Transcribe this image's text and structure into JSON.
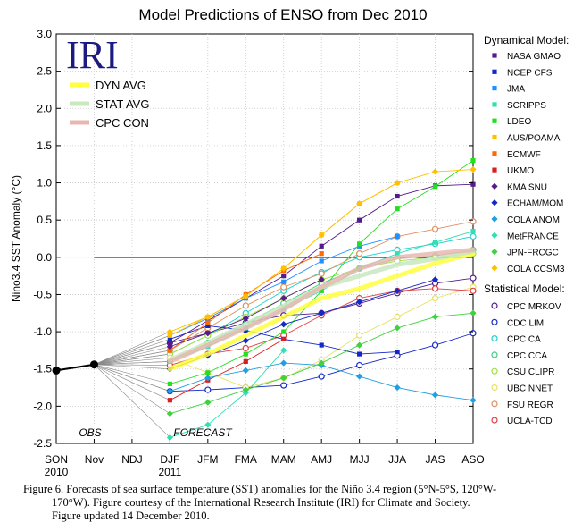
{
  "chart_data": {
    "type": "line",
    "title": "Model Predictions of ENSO from Dec 2010",
    "ylabel": "Nino3.4 SST Anomaly (°C)",
    "xlabel": "",
    "ylim": [
      -2.5,
      3.0
    ],
    "yticks": [
      "3.0",
      "2.5",
      "2.0",
      "1.5",
      "1.0",
      "0.5",
      "0.0",
      "-0.5",
      "-1.0",
      "-1.5",
      "-2.0",
      "-2.5"
    ],
    "categories": [
      "SON",
      "Nov",
      "NDJ",
      "DJF",
      "JFM",
      "FMA",
      "MAM",
      "AMJ",
      "MJJ",
      "JJA",
      "JAS",
      "ASO"
    ],
    "category_sublabels": {
      "SON": "2010",
      "DJF": "2011"
    },
    "logo": "IRI",
    "annotations": {
      "obs": "OBS",
      "forecast": "FORECAST"
    },
    "observed": {
      "name": "OBS",
      "x": [
        "SON",
        "Nov"
      ],
      "values": [
        -1.52,
        -1.44
      ],
      "color": "#000000"
    },
    "averages": [
      {
        "name": "DYN AVG",
        "color": "#ffff40",
        "values": [
          -1.5,
          -1.3,
          -1.05,
          -0.8,
          -0.55,
          -0.42,
          -0.25,
          -0.08,
          0.05
        ]
      },
      {
        "name": "STAT AVG",
        "color": "#c8e8c0",
        "values": [
          -1.38,
          -1.15,
          -0.9,
          -0.65,
          -0.4,
          -0.25,
          -0.1,
          -0.02,
          0.08
        ]
      },
      {
        "name": "CPC CON",
        "color": "#e8b8b0",
        "values": [
          -1.4,
          -1.18,
          -0.95,
          -0.7,
          -0.4,
          -0.15,
          0.0,
          0.05,
          0.1
        ]
      }
    ],
    "legend_dynamical_title": "Dynamical Model:",
    "legend_statistical_title": "Statistical Model:",
    "dynamical_models": [
      {
        "name": "NASA GMAO",
        "color": "#551a8b",
        "marker": "square",
        "values": [
          -1.15,
          -0.85,
          -0.55,
          -0.25,
          0.15,
          0.5,
          0.82,
          0.96,
          0.98
        ]
      },
      {
        "name": "NCEP CFS",
        "color": "#1428c8",
        "marker": "square",
        "values": [
          -1.1,
          -0.92,
          -0.98,
          -1.1,
          -1.18,
          -1.3,
          -1.27,
          null,
          null
        ]
      },
      {
        "name": "JMA",
        "color": "#1e90ff",
        "marker": "square",
        "values": [
          -1.05,
          -0.82,
          -0.55,
          -0.33,
          -0.05,
          0.15,
          0.28,
          null,
          null
        ]
      },
      {
        "name": "SCRIPPS",
        "color": "#30e0b0",
        "marker": "square",
        "values": [
          -1.4,
          -1.2,
          -0.95,
          -0.7,
          -0.45,
          -0.15,
          0.05,
          0.2,
          0.35
        ]
      },
      {
        "name": "LDEO",
        "color": "#20e020",
        "marker": "square",
        "values": [
          -1.7,
          -1.55,
          -1.3,
          -1.0,
          -0.45,
          0.18,
          0.65,
          0.95,
          1.3
        ]
      },
      {
        "name": "AUS/POAMA",
        "color": "#ffc000",
        "marker": "square",
        "values": [
          -1.05,
          -0.8,
          -0.52,
          -0.15,
          0.3,
          0.72,
          1.0,
          null,
          null
        ]
      },
      {
        "name": "ECMWF",
        "color": "#ff6a00",
        "marker": "square",
        "values": [
          -1.25,
          -0.88,
          -0.5,
          -0.18,
          0.05,
          null,
          null,
          null,
          null
        ]
      },
      {
        "name": "UKMO",
        "color": "#d81e1e",
        "marker": "square",
        "values": [
          -1.92,
          -1.65,
          -1.4,
          -1.1,
          null,
          null,
          null,
          null,
          null
        ]
      },
      {
        "name": "KMA SNU",
        "color": "#551a8b",
        "marker": "diamond",
        "values": [
          -1.2,
          -1.02,
          -0.82,
          -0.55,
          -0.3,
          null,
          null,
          null,
          null
        ]
      },
      {
        "name": "ECHAM/MOM",
        "color": "#1428c8",
        "marker": "diamond",
        "values": [
          -1.5,
          -1.32,
          -1.12,
          -0.9,
          -0.75,
          -0.6,
          -0.45,
          -0.3,
          null
        ]
      },
      {
        "name": "COLA ANOM",
        "color": "#20a0e0",
        "marker": "diamond",
        "values": [
          -1.8,
          -1.62,
          -1.52,
          -1.42,
          -1.45,
          -1.6,
          -1.75,
          -1.85,
          -1.92
        ]
      },
      {
        "name": "MetFRANCE",
        "color": "#30e0b0",
        "marker": "diamond",
        "values": [
          -2.42,
          -2.25,
          -1.82,
          -1.25,
          null,
          null,
          null,
          null,
          null
        ]
      },
      {
        "name": "JPN-FRCGC",
        "color": "#40d040",
        "marker": "diamond",
        "values": [
          -2.1,
          -1.95,
          -1.78,
          -1.62,
          -1.42,
          -1.18,
          -0.95,
          -0.8,
          -0.75
        ]
      },
      {
        "name": "COLA CCSM3",
        "color": "#ffc000",
        "marker": "diamond",
        "values": [
          -1.0,
          -0.8,
          -0.52,
          -0.15,
          0.3,
          0.72,
          1.0,
          1.15,
          1.18
        ]
      }
    ],
    "statistical_models": [
      {
        "name": "CPC MRKOV",
        "color": "#551a8b",
        "marker": "circle",
        "values": [
          -1.15,
          -1.02,
          -0.88,
          -0.78,
          -0.75,
          -0.62,
          -0.48,
          -0.35,
          -0.28
        ]
      },
      {
        "name": "CDC LIM",
        "color": "#1428c8",
        "marker": "circle",
        "values": [
          -1.8,
          -1.78,
          -1.75,
          -1.72,
          -1.6,
          -1.45,
          -1.32,
          -1.18,
          -1.02
        ]
      },
      {
        "name": "CPC CA",
        "color": "#20d0d0",
        "marker": "circle",
        "values": [
          -1.3,
          -1.05,
          -0.75,
          -0.45,
          -0.2,
          0.0,
          0.1,
          0.18,
          0.28
        ]
      },
      {
        "name": "CPC CCA",
        "color": "#40d080",
        "marker": "circle",
        "values": [
          -1.4,
          -1.15,
          -0.9,
          -0.62,
          -0.35,
          -0.15,
          -0.02,
          0.02,
          0.1
        ]
      },
      {
        "name": "CSU CLIPR",
        "color": "#a0e040",
        "marker": "circle",
        "values": [
          -1.3,
          -1.05,
          -0.8,
          -0.55,
          -0.3,
          -0.15,
          -0.05,
          0.0,
          0.05
        ]
      },
      {
        "name": "UBC NNET",
        "color": "#e8e060",
        "marker": "circle",
        "values": [
          -1.35,
          -1.55,
          -1.75,
          -1.62,
          -1.38,
          -1.05,
          -0.8,
          -0.55,
          -0.4
        ]
      },
      {
        "name": "FSU REGR",
        "color": "#e09060",
        "marker": "circle",
        "values": [
          -1.25,
          -0.95,
          -0.65,
          -0.4,
          -0.22,
          0.05,
          0.28,
          0.38,
          0.48
        ]
      },
      {
        "name": "UCLA-TCD",
        "color": "#e04040",
        "marker": "circle",
        "values": [
          -1.45,
          -1.3,
          -1.22,
          -1.05,
          -0.78,
          -0.55,
          -0.45,
          -0.42,
          -0.45
        ]
      }
    ]
  },
  "caption": {
    "line1": "Figure 6. Forecasts of sea surface temperature (SST) anomalies for the Niño 3.4 region (5°N-5°S, 120°W-",
    "line2": "170°W).  Figure courtesy of the International Research Institute (IRI) for Climate and Society.",
    "line3": "Figure updated 14 December 2010."
  }
}
